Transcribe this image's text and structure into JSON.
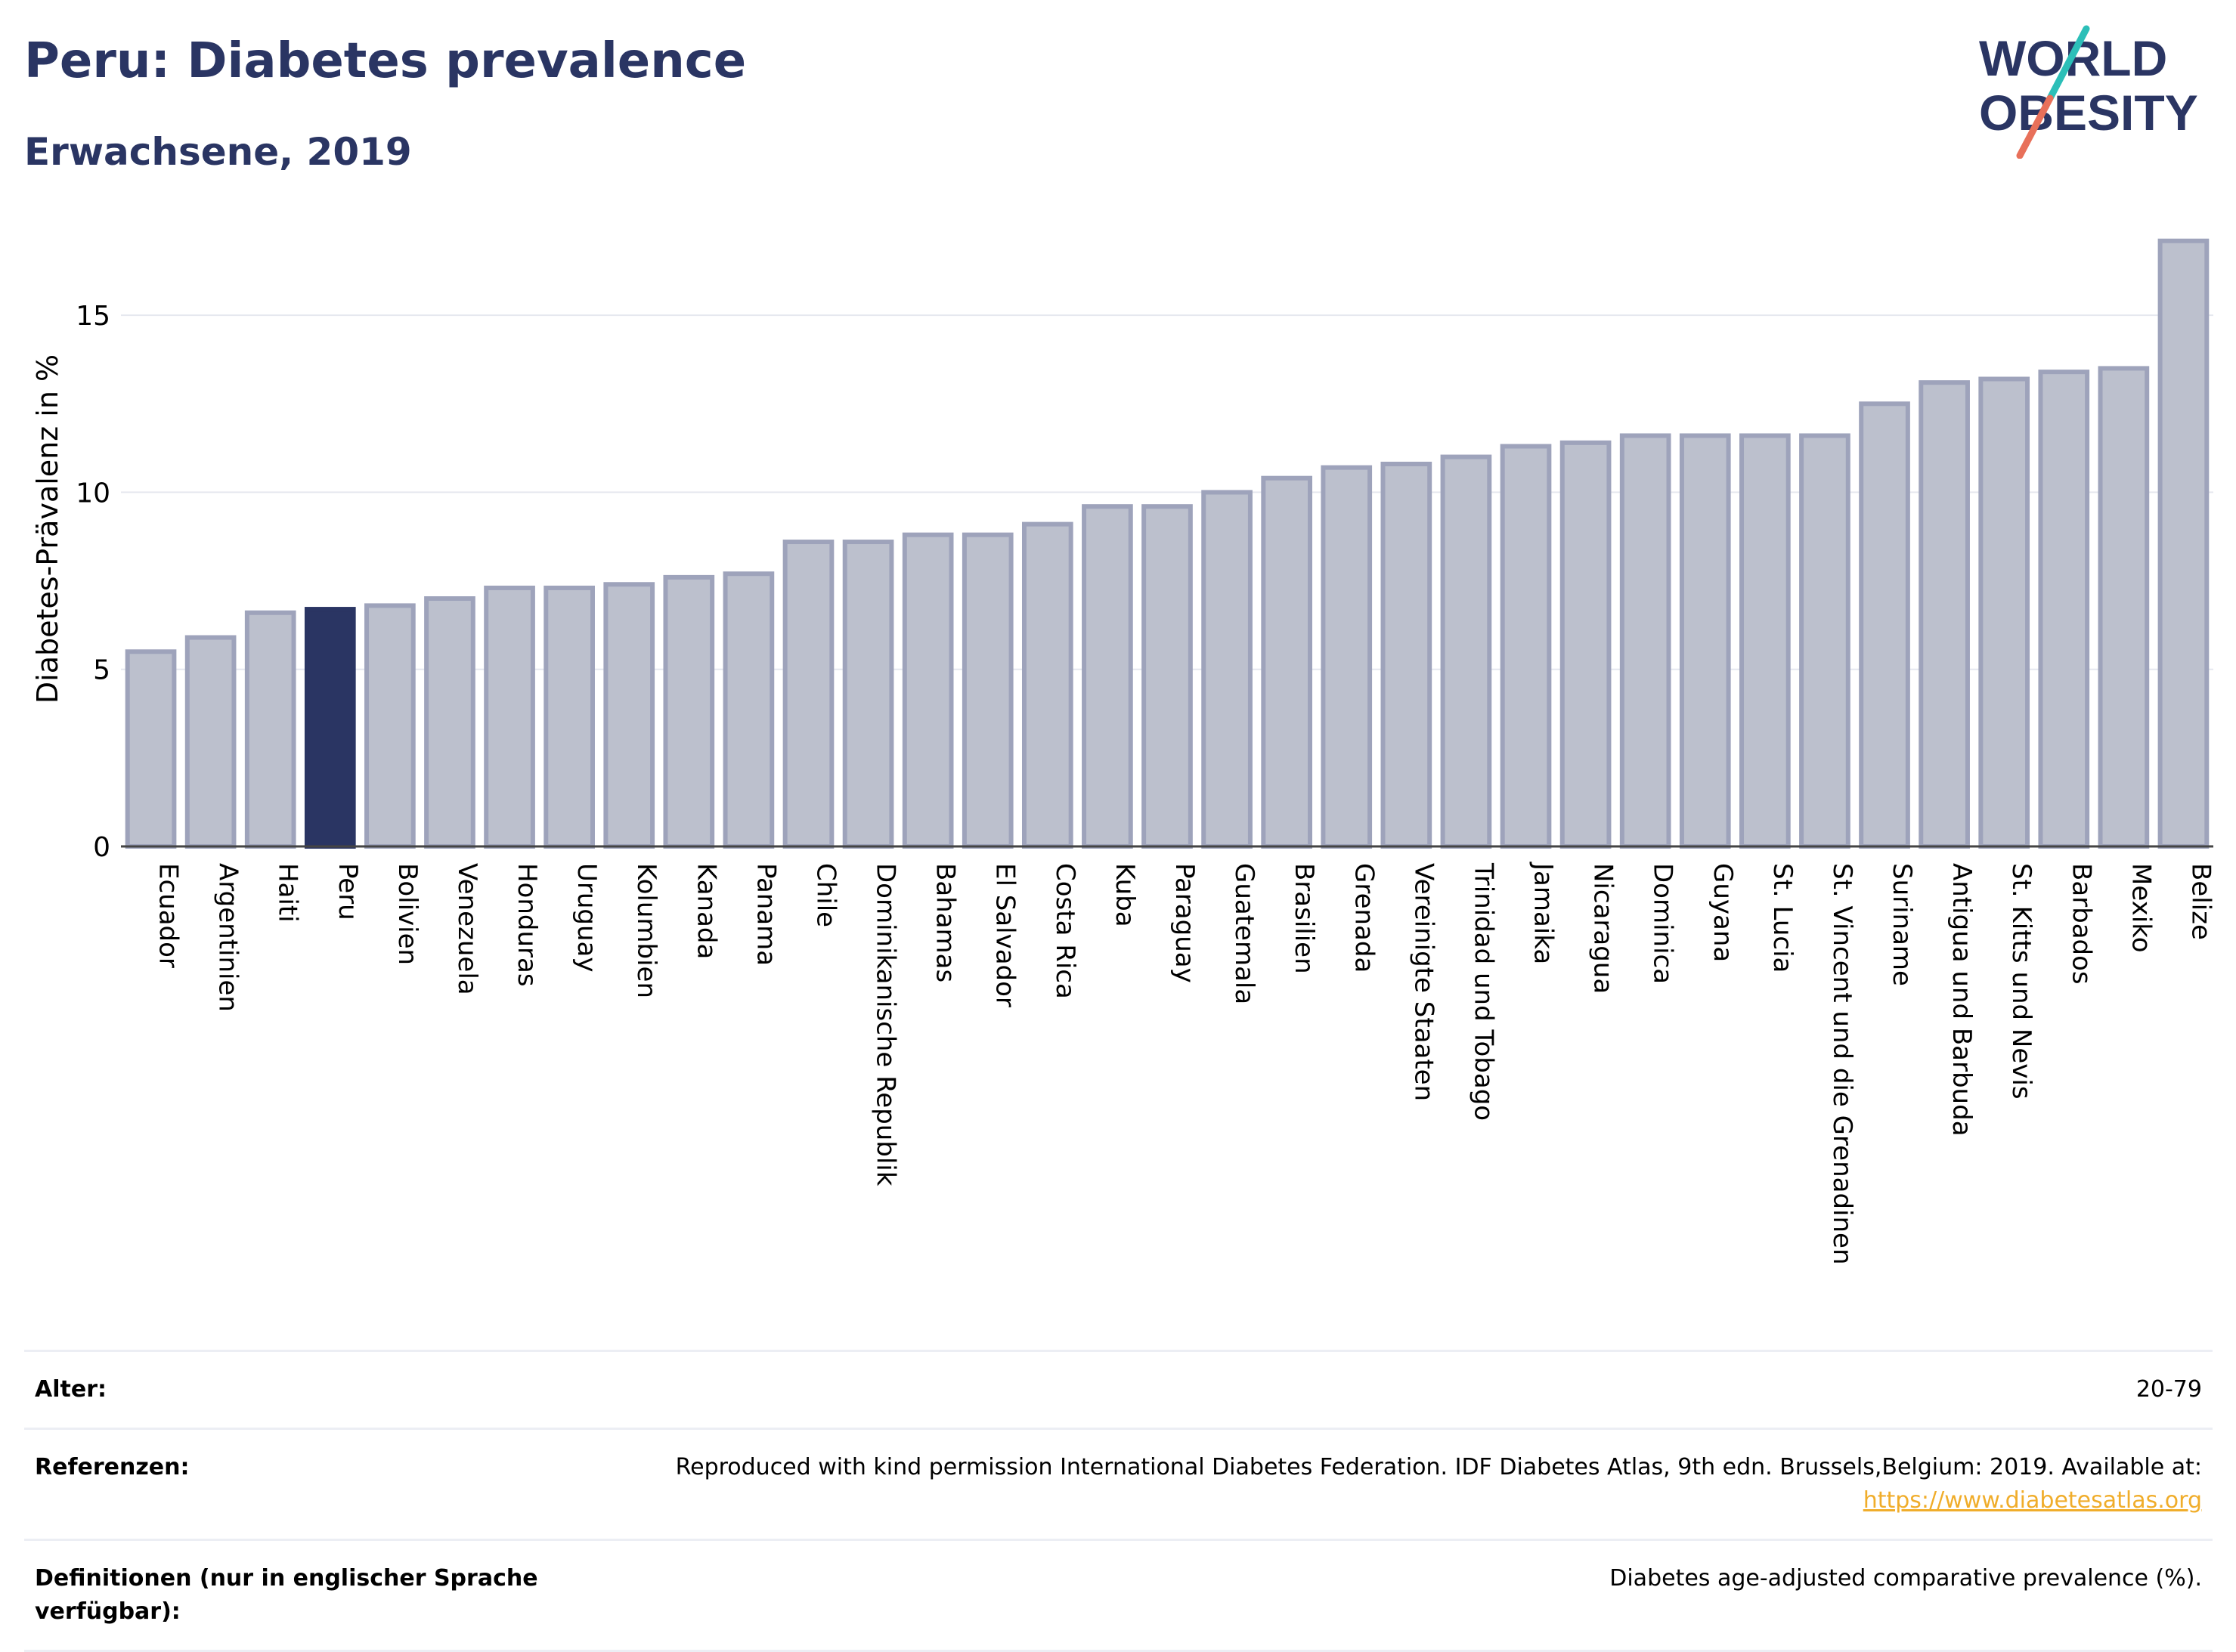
{
  "header": {
    "title": "Peru: Diabetes prevalence",
    "subtitle": "Erwachsene, 2019"
  },
  "logo": {
    "line1": "WORLD",
    "line2": "OBESITY"
  },
  "colors": {
    "highlight_bar": "#2a3563",
    "bar_fill": "#bcc0cd",
    "bar_stroke": "#9ea3bb",
    "grid": "#e6e8ef",
    "logo_teal": "#2cbfb8",
    "logo_coral": "#e8705a",
    "link": "#f0ad2b"
  },
  "chart_data": {
    "type": "bar",
    "ylabel": "Diabetes-Prävalenz in %",
    "ylim": [
      0,
      17.5
    ],
    "yticks": [
      0,
      5,
      10,
      15
    ],
    "grid": true,
    "highlight": "Peru",
    "categories": [
      "Ecuador",
      "Argentinien",
      "Haiti",
      "Peru",
      "Bolivien",
      "Venezuela",
      "Honduras",
      "Uruguay",
      "Kolumbien",
      "Kanada",
      "Panama",
      "Chile",
      "Dominikanische Republik",
      "Bahamas",
      "El Salvador",
      "Costa Rica",
      "Kuba",
      "Paraguay",
      "Guatemala",
      "Brasilien",
      "Grenada",
      "Vereinigte Staaten",
      "Trinidad und Tobago",
      "Jamaika",
      "Nicaragua",
      "Dominica",
      "Guyana",
      "St. Lucia",
      "St. Vincent und die Grenadinen",
      "Suriname",
      "Antigua und Barbuda",
      "St. Kitts und Nevis",
      "Barbados",
      "Mexiko",
      "Belize"
    ],
    "values": [
      5.5,
      5.9,
      6.6,
      6.7,
      6.8,
      7.0,
      7.3,
      7.3,
      7.4,
      7.6,
      7.7,
      8.6,
      8.6,
      8.8,
      8.8,
      9.1,
      9.6,
      9.6,
      10.0,
      10.4,
      10.7,
      10.8,
      11.0,
      11.3,
      11.4,
      11.6,
      11.6,
      11.6,
      11.6,
      12.5,
      13.1,
      13.2,
      13.4,
      13.5,
      17.1
    ]
  },
  "info": {
    "rows": [
      {
        "label": "Alter:",
        "value": "20-79"
      },
      {
        "label": "Referenzen:",
        "value": "Reproduced with kind permission International Diabetes Federation. IDF Diabetes Atlas, 9th edn. Brussels,Belgium: 2019. Available at:",
        "link": "https://www.diabetesatlas.org"
      },
      {
        "label": "Definitionen (nur in englischer Sprache verfügbar):",
        "value": "Diabetes age-adjusted comparative prevalence (%)."
      }
    ]
  }
}
